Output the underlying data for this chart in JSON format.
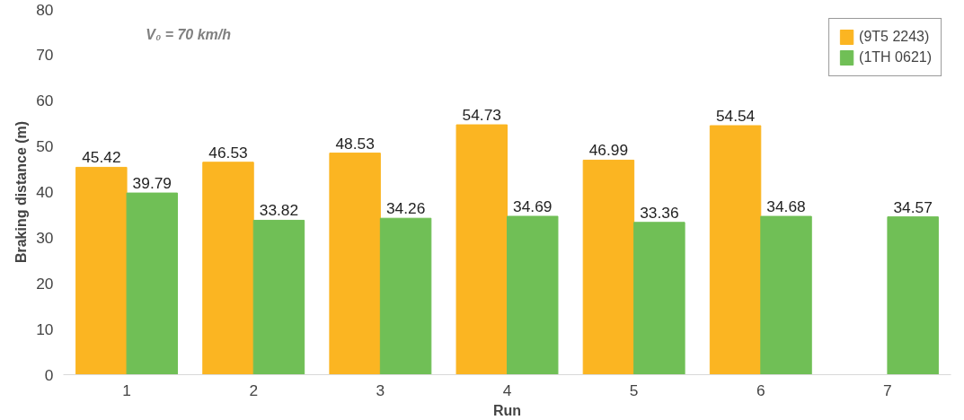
{
  "chart_data": {
    "type": "bar",
    "xlabel": "Run",
    "ylabel": "Braking distance (m)",
    "categories": [
      "1",
      "2",
      "3",
      "4",
      "5",
      "6",
      "7"
    ],
    "series": [
      {
        "name": "(9T5 2243)",
        "color": "#fbb522",
        "values": [
          45.42,
          46.53,
          48.53,
          54.73,
          46.99,
          54.54,
          null
        ]
      },
      {
        "name": "(1TH 0621)",
        "color": "#70bf56",
        "values": [
          39.79,
          33.82,
          34.26,
          34.69,
          33.36,
          34.68,
          34.57
        ]
      }
    ],
    "ylim": [
      0,
      80
    ],
    "yticks": [
      0,
      10,
      20,
      30,
      40,
      50,
      60,
      70,
      80
    ],
    "grid": false,
    "legend": "top right",
    "data_labels": true,
    "annotations": [
      "V₀ = 70 km/h"
    ]
  }
}
